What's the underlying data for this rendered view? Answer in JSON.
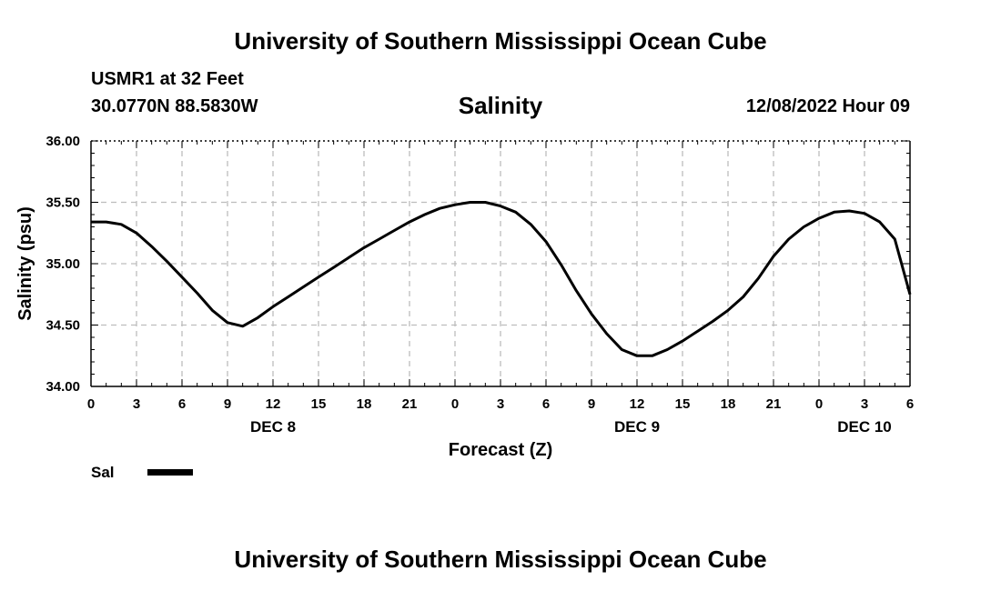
{
  "header": {
    "title": "University of Southern Mississippi Ocean Cube",
    "station": "USMR1 at 32 Feet",
    "coordinates": "30.0770N  88.5830W",
    "datetime": "12/08/2022 Hour 09"
  },
  "footer": {
    "title": "University of Southern Mississippi Ocean Cube"
  },
  "legend": {
    "label": "Sal"
  },
  "chart_data": {
    "type": "line",
    "title": "Salinity",
    "xlabel": "Forecast (Z)",
    "ylabel": "Salinity (psu)",
    "xlim": [
      0,
      54
    ],
    "ylim": [
      34.0,
      36.0
    ],
    "grid": true,
    "x_ticks": [
      0,
      3,
      6,
      9,
      12,
      15,
      18,
      21,
      24,
      27,
      30,
      33,
      36,
      39,
      42,
      45,
      48,
      51,
      54
    ],
    "x_tick_labels": [
      "0",
      "3",
      "6",
      "9",
      "12",
      "15",
      "18",
      "21",
      "0",
      "3",
      "6",
      "9",
      "12",
      "15",
      "18",
      "21",
      "0",
      "3",
      "6"
    ],
    "y_ticks": [
      34.0,
      34.5,
      35.0,
      35.5,
      36.0
    ],
    "y_tick_labels": [
      "34.00",
      "34.50",
      "35.00",
      "35.50",
      "36.00"
    ],
    "date_labels": [
      {
        "x": 12,
        "label": "DEC 8"
      },
      {
        "x": 36,
        "label": "DEC 9"
      },
      {
        "x": 51,
        "label": "DEC 10"
      }
    ],
    "series": [
      {
        "name": "Sal",
        "x": [
          0,
          1,
          2,
          3,
          4,
          5,
          6,
          7,
          8,
          9,
          10,
          11,
          12,
          13,
          14,
          15,
          16,
          17,
          18,
          19,
          20,
          21,
          22,
          23,
          24,
          25,
          26,
          27,
          28,
          29,
          30,
          31,
          32,
          33,
          34,
          35,
          36,
          37,
          38,
          39,
          40,
          41,
          42,
          43,
          44,
          45,
          46,
          47,
          48,
          49,
          50,
          51,
          52,
          53,
          54
        ],
        "values": [
          35.34,
          35.34,
          35.32,
          35.25,
          35.14,
          35.02,
          34.89,
          34.76,
          34.62,
          34.52,
          34.49,
          34.56,
          34.65,
          34.73,
          34.81,
          34.89,
          34.97,
          35.05,
          35.13,
          35.2,
          35.27,
          35.34,
          35.4,
          35.45,
          35.48,
          35.5,
          35.5,
          35.47,
          35.42,
          35.32,
          35.18,
          34.99,
          34.78,
          34.59,
          34.43,
          34.3,
          34.25,
          34.25,
          34.3,
          34.37,
          34.45,
          34.53,
          34.62,
          34.73,
          34.88,
          35.06,
          35.2,
          35.3,
          35.37,
          35.42,
          35.43,
          35.41,
          35.34,
          35.2,
          34.75
        ]
      }
    ]
  }
}
